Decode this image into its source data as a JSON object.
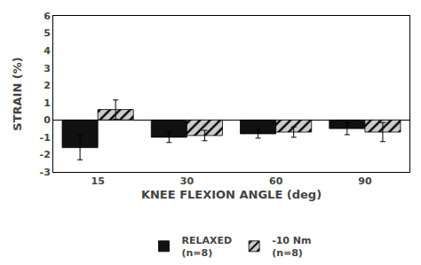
{
  "chart_data": {
    "type": "bar",
    "categories": [
      15,
      30,
      60,
      90
    ],
    "series": [
      {
        "name": "RELAXED",
        "color": "#111111",
        "values": [
          -1.6,
          -1.0,
          -0.8,
          -0.5
        ],
        "errors": [
          0.7,
          0.3,
          0.25,
          0.35
        ]
      },
      {
        "name": "-10 Nm",
        "color": "#cccccc",
        "values": [
          0.6,
          -0.9,
          -0.7,
          -0.7
        ],
        "errors": [
          0.55,
          0.3,
          0.3,
          0.55
        ]
      }
    ],
    "annotations": [
      "(n=8)",
      "(n=8)"
    ],
    "xlabel": "KNEE FLEXION ANGLE (deg)",
    "ylabel": "STRAIN (%)",
    "ylim": [
      -3,
      6
    ],
    "yticks": [
      -3,
      -2,
      -1,
      0,
      1,
      2,
      3,
      4,
      5,
      6
    ],
    "grid": false,
    "legend": "bottom"
  }
}
